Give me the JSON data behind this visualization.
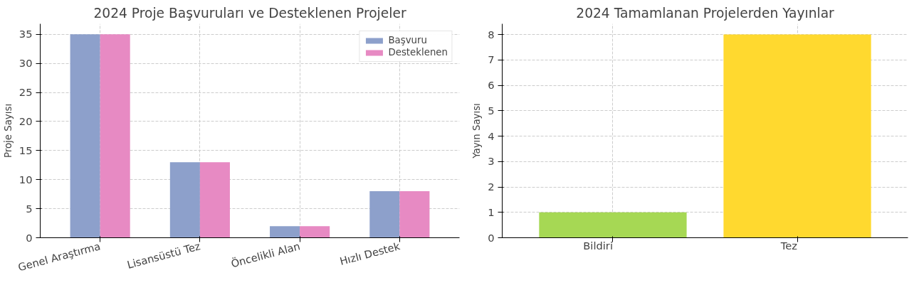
{
  "chart_data": [
    {
      "type": "bar",
      "title": "2024 Proje Başvuruları ve Desteklenen Projeler",
      "ylabel": "Proje Sayısı",
      "categories": [
        "Genel Araştırma",
        "Lisansüstü Tez",
        "Öncelikli Alan",
        "Hızlı Destek"
      ],
      "series": [
        {
          "name": "Başvuru",
          "color": "#8da0cb",
          "values": [
            35,
            13,
            2,
            8
          ]
        },
        {
          "name": "Desteklenen",
          "color": "#e78ac3",
          "values": [
            35,
            13,
            2,
            8
          ]
        }
      ],
      "ylim": [
        0,
        36.8
      ],
      "yticks": [
        0,
        5,
        10,
        15,
        20,
        25,
        30,
        35
      ],
      "grid": true,
      "legend": "top right"
    },
    {
      "type": "bar",
      "title": "2024 Tamamlanan Projelerden Yayınlar",
      "ylabel": "Yayın Sayısı",
      "categories": [
        "Bildiri",
        "Tez"
      ],
      "values": [
        1,
        8
      ],
      "colors": [
        "#a6d854",
        "#ffd92f"
      ],
      "ylim": [
        0,
        8.42
      ],
      "yticks": [
        0,
        1,
        2,
        3,
        4,
        5,
        6,
        7,
        8
      ],
      "grid": true,
      "legend": false
    }
  ]
}
